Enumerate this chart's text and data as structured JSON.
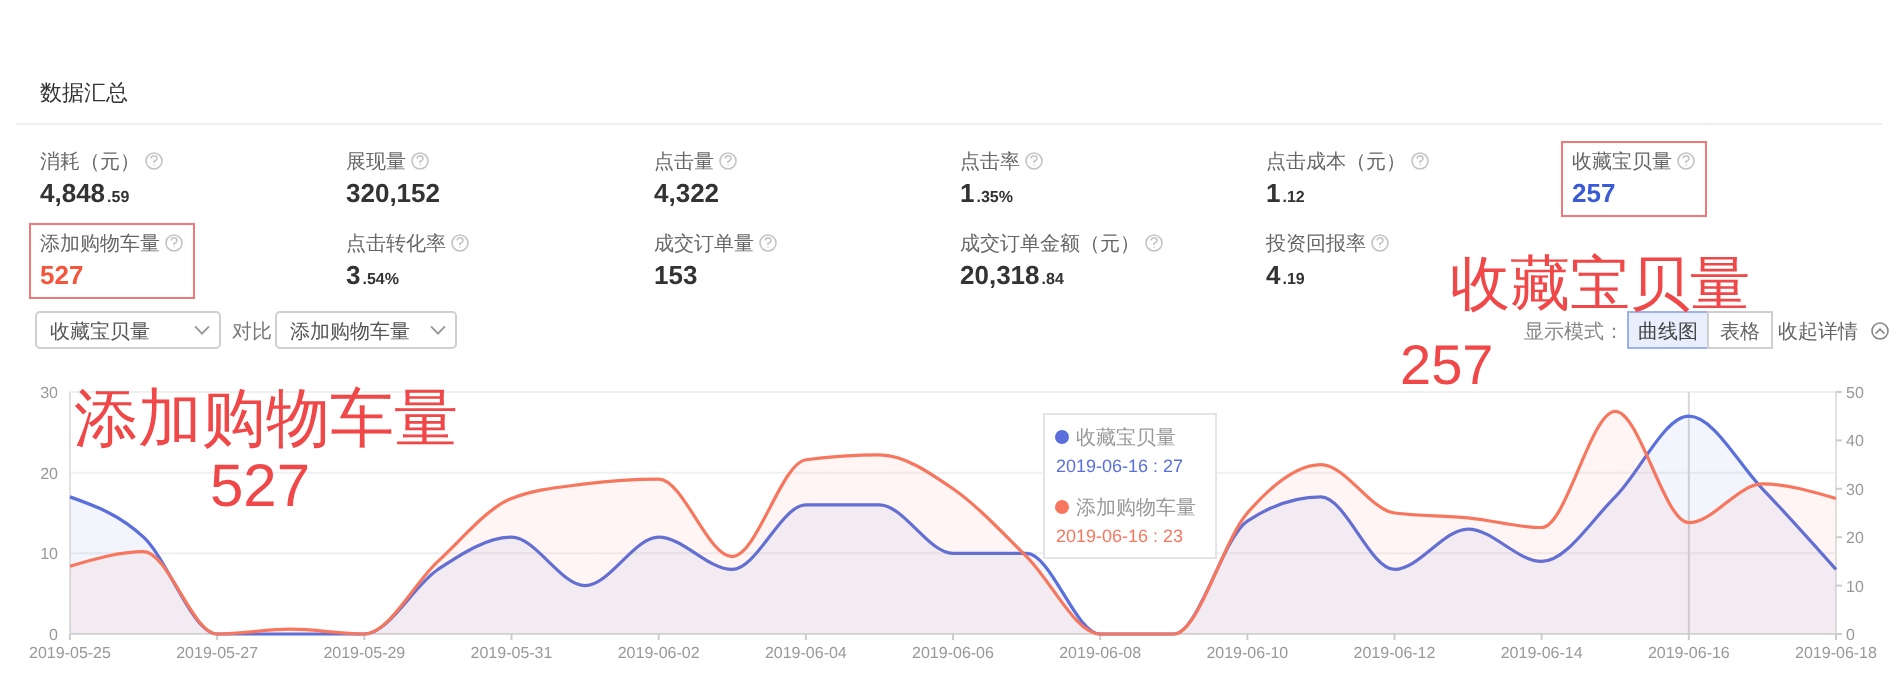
{
  "chart_data": [
    {
      "type": "other",
      "title": "数据汇总",
      "categories": [
        "消耗（元）",
        "展现量",
        "点击量",
        "点击率",
        "点击成本（元）",
        "收藏宝贝量",
        "添加购物车量",
        "点击转化率",
        "成交订单量",
        "成交订单金额（元）",
        "投资回报率"
      ],
      "annotations": [
        "4,848.59",
        "320,152",
        "4,322",
        "1.35%",
        "1.12",
        "257",
        "527",
        "3.54%",
        "153",
        "20,318.84",
        "4.19"
      ],
      "colors": [
        "#333333",
        "#333333",
        "#333333",
        "#333333",
        "#333333",
        "#3a5bd6",
        "#f5553a",
        "#333333",
        "#333333",
        "#333333",
        "#333333"
      ]
    },
    {
      "type": "area",
      "x": [
        "2019-05-25",
        "2019-05-26",
        "2019-05-27",
        "2019-05-28",
        "2019-05-29",
        "2019-05-30",
        "2019-05-31",
        "2019-06-01",
        "2019-06-02",
        "2019-06-03",
        "2019-06-04",
        "2019-06-05",
        "2019-06-06",
        "2019-06-07",
        "2019-06-08",
        "2019-06-09",
        "2019-06-10",
        "2019-06-11",
        "2019-06-12",
        "2019-06-13",
        "2019-06-14",
        "2019-06-15",
        "2019-06-16",
        "2019-06-17",
        "2019-06-18"
      ],
      "series": [
        {
          "name": "收藏宝贝量",
          "color": "#5a6fdc",
          "values": [
            17,
            12,
            0,
            0,
            0,
            8,
            12,
            6,
            12,
            8,
            16,
            16,
            10,
            10,
            0,
            0,
            14,
            17,
            8,
            13,
            9,
            17,
            27,
            18,
            8
          ]
        },
        {
          "name": "添加购物车量",
          "color": "#f7775e",
          "axis": "y2",
          "values": [
            14,
            17,
            0,
            1,
            0,
            15,
            28,
            31,
            32,
            16,
            36,
            37,
            30,
            16,
            0,
            0,
            25,
            35,
            25,
            24,
            22,
            46,
            23,
            31,
            28
          ]
        }
      ],
      "xlim": [
        "2019-05-25",
        "2019-06-18"
      ],
      "xticks": [
        "2019-05-25",
        "2019-05-27",
        "2019-05-29",
        "2019-05-31",
        "2019-06-02",
        "2019-06-04",
        "2019-06-06",
        "2019-06-08",
        "2019-06-10",
        "2019-06-12",
        "2019-06-14",
        "2019-06-16",
        "2019-06-18"
      ],
      "ylim": [
        0,
        30
      ],
      "yticks": [
        0,
        10,
        20,
        30
      ],
      "y2lim": [
        0,
        50
      ],
      "y2ticks": [
        0,
        10,
        20,
        30,
        40,
        50
      ],
      "grid": "y",
      "legend": "top",
      "ref_lines": [
        {
          "axis": "x",
          "value": "2019-06-16",
          "color": "#d8d8d8"
        }
      ],
      "annotations": [
        "收藏宝贝量",
        "对比",
        "添加购物车量",
        "显示模式：",
        "曲线图",
        "表格",
        "收起详情",
        "添加购物车量",
        "527",
        "收藏宝贝量",
        "257",
        "2019-06-16 : 27",
        "2019-06-16 : 23"
      ]
    }
  ]
}
